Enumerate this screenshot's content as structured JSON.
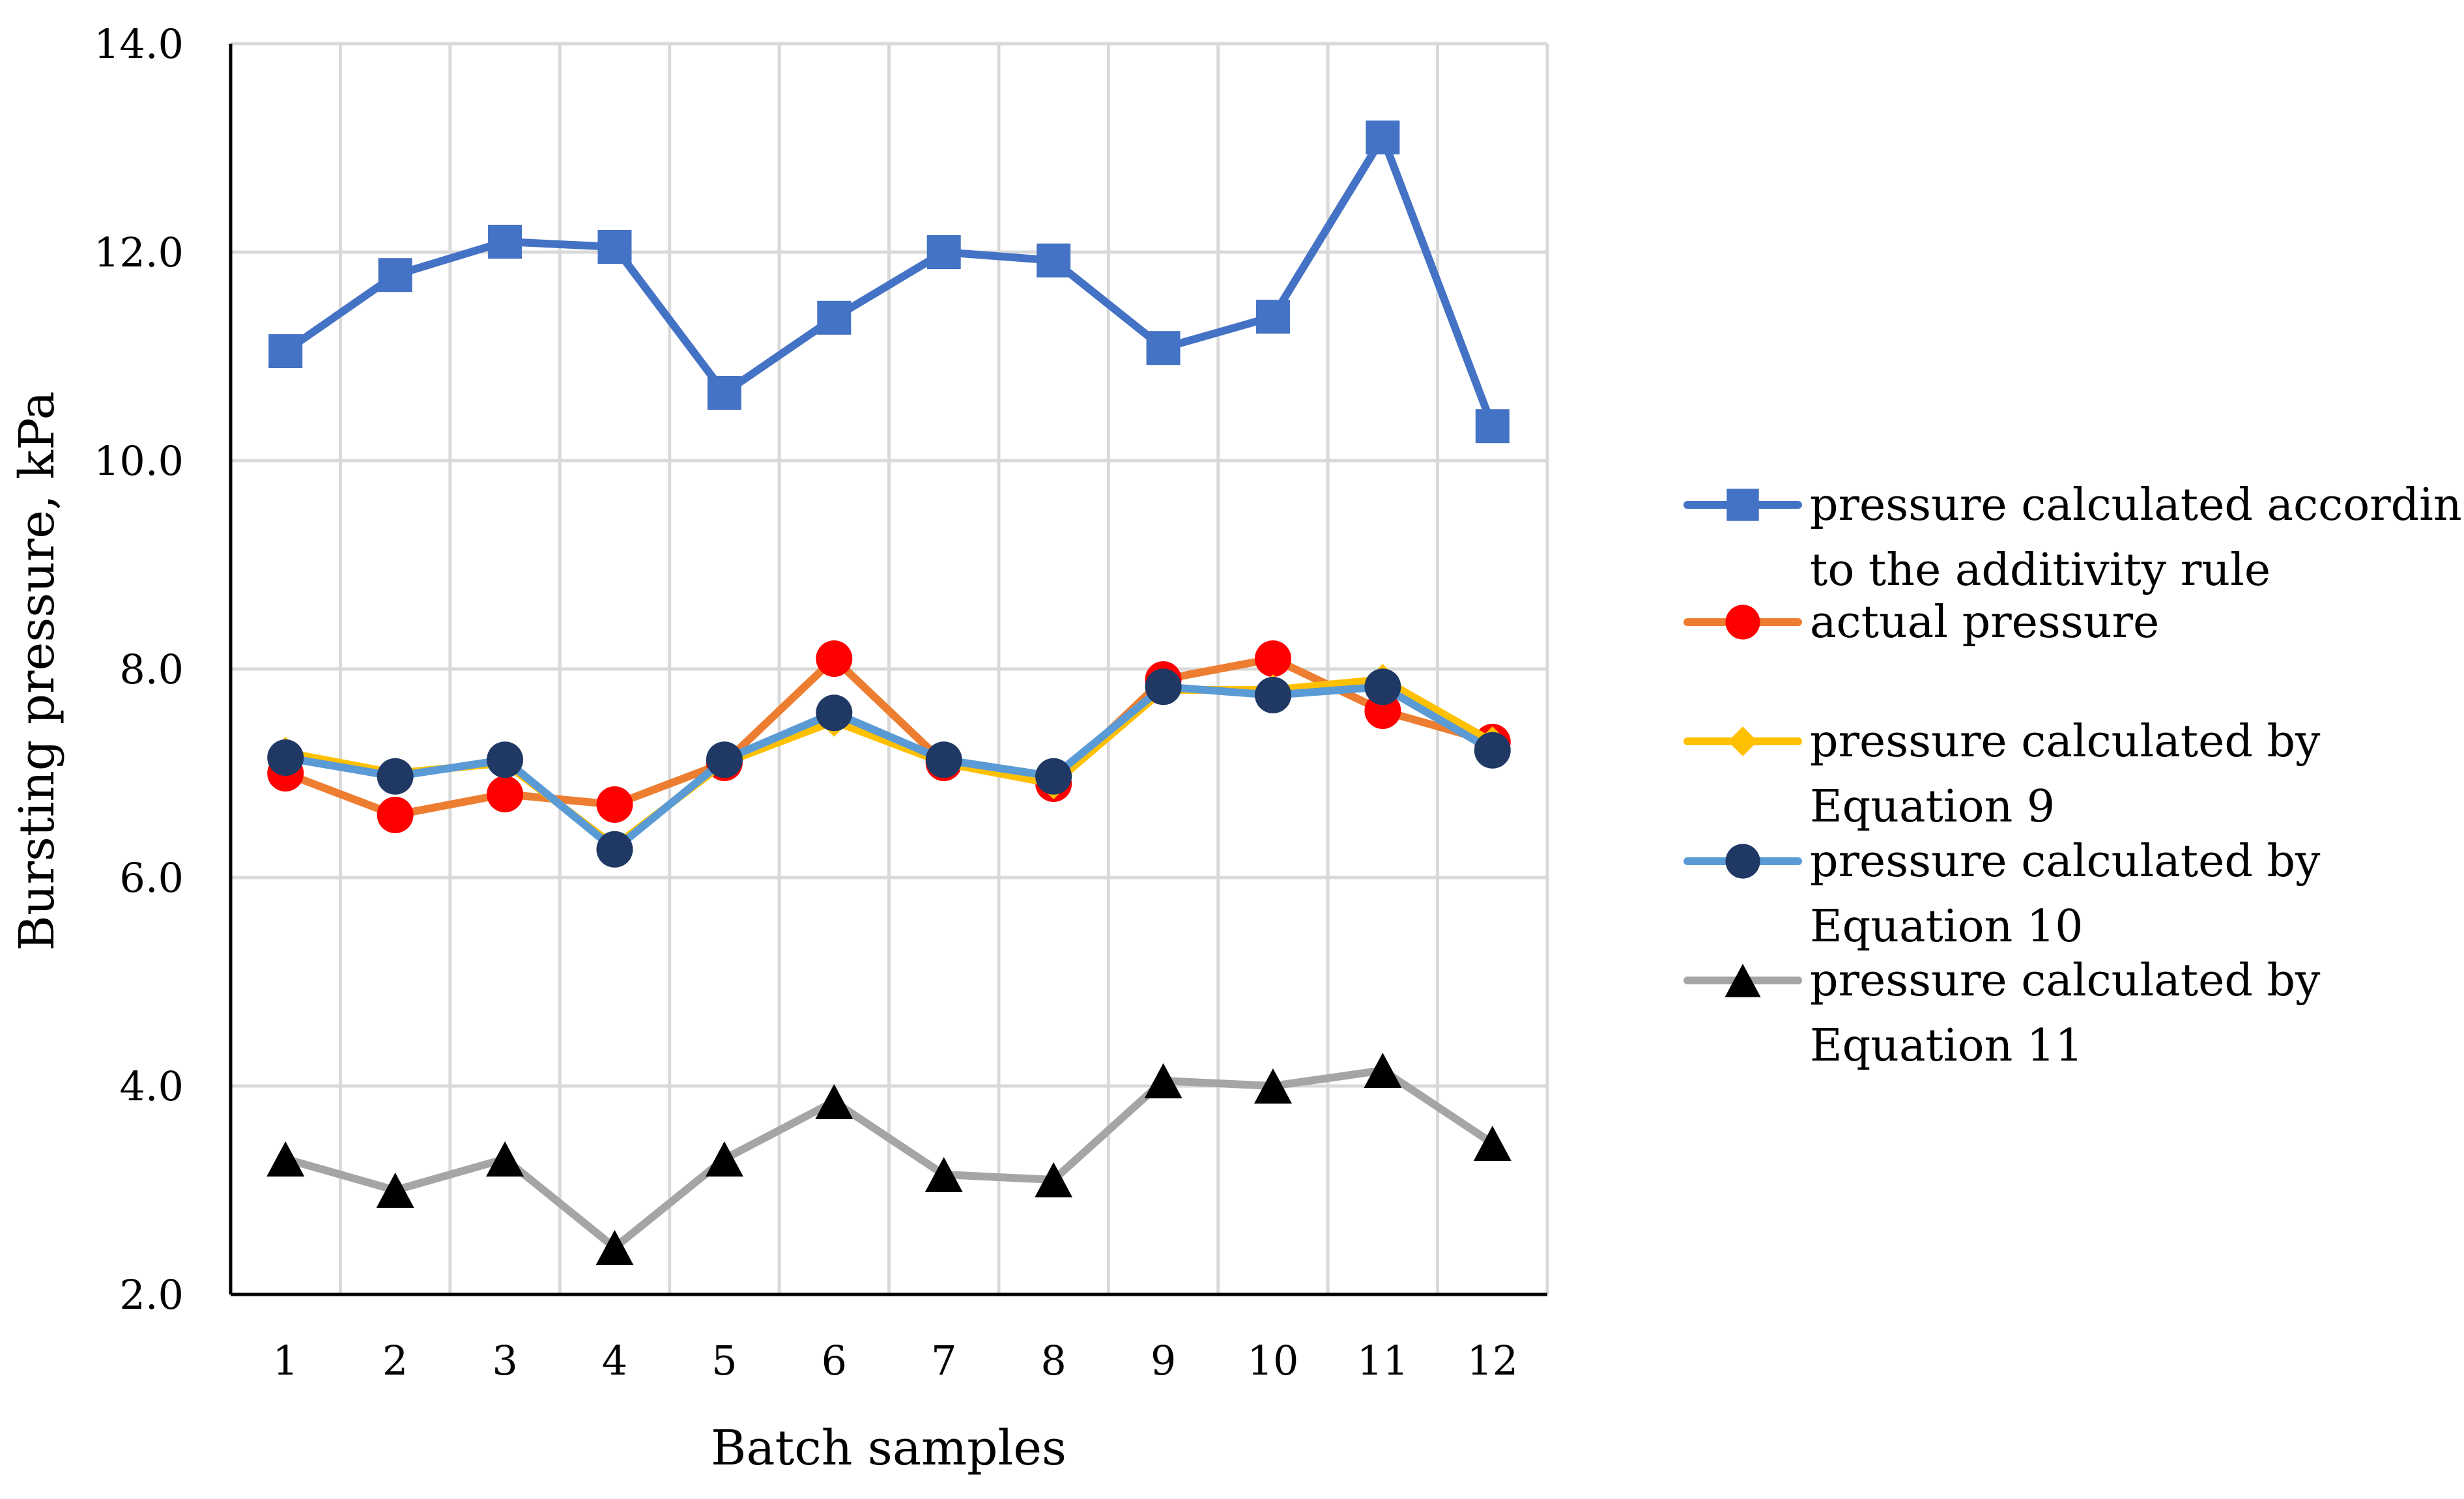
{
  "chart_data": {
    "type": "line",
    "title": "",
    "xlabel": "Batch samples",
    "ylabel": "Bursting pressure, kPa",
    "categories": [
      "1",
      "2",
      "3",
      "4",
      "5",
      "6",
      "7",
      "8",
      "9",
      "10",
      "11",
      "12"
    ],
    "ylim": [
      2.0,
      14.0
    ],
    "yticks": [
      "2.0",
      "4.0",
      "6.0",
      "8.0",
      "10.0",
      "12.0",
      "14.0"
    ],
    "grid": true,
    "legend_position": "right",
    "series": [
      {
        "name": "pressure calculated according to the additivity rule",
        "legend_lines": [
          "pressure calculated according",
          "to the additivity rule"
        ],
        "color": "#4472C4",
        "marker": "square",
        "marker_color": "#4472C4",
        "values": [
          11.05,
          11.78,
          12.1,
          12.05,
          10.65,
          11.37,
          12.0,
          11.92,
          11.08,
          11.38,
          13.1,
          10.33
        ]
      },
      {
        "name": "actual pressure",
        "legend_lines": [
          "actual pressure"
        ],
        "color": "#ED7D31",
        "marker": "circle",
        "marker_color": "#FF0000",
        "values": [
          7.0,
          6.6,
          6.8,
          6.7,
          7.1,
          8.1,
          7.1,
          6.9,
          7.9,
          8.1,
          7.6,
          7.3
        ]
      },
      {
        "name": "pressure calculated by Equation 9",
        "legend_lines": [
          "pressure calculated by",
          "Equation 9"
        ],
        "color": "#FFC000",
        "marker": "diamond",
        "marker_color": "#FFC000",
        "values": [
          7.2,
          7.0,
          7.1,
          6.3,
          7.1,
          7.5,
          7.1,
          6.9,
          7.8,
          7.8,
          7.9,
          7.3
        ]
      },
      {
        "name": "pressure calculated by Equation 10",
        "legend_lines": [
          "pressure calculated by",
          "Equation 10"
        ],
        "color": "#5B9BD5",
        "marker": "circle",
        "marker_color": "#1F3864",
        "values": [
          7.15,
          6.97,
          7.13,
          6.27,
          7.13,
          7.58,
          7.13,
          6.97,
          7.83,
          7.75,
          7.83,
          7.22
        ]
      },
      {
        "name": "pressure calculated by Equation 11",
        "legend_lines": [
          "pressure calculated by",
          "Equation 11"
        ],
        "color": "#A5A5A5",
        "marker": "triangle",
        "marker_color": "#000000",
        "values": [
          3.3,
          3.0,
          3.3,
          2.45,
          3.3,
          3.85,
          3.15,
          3.1,
          4.05,
          4.0,
          4.15,
          3.45
        ]
      }
    ]
  }
}
